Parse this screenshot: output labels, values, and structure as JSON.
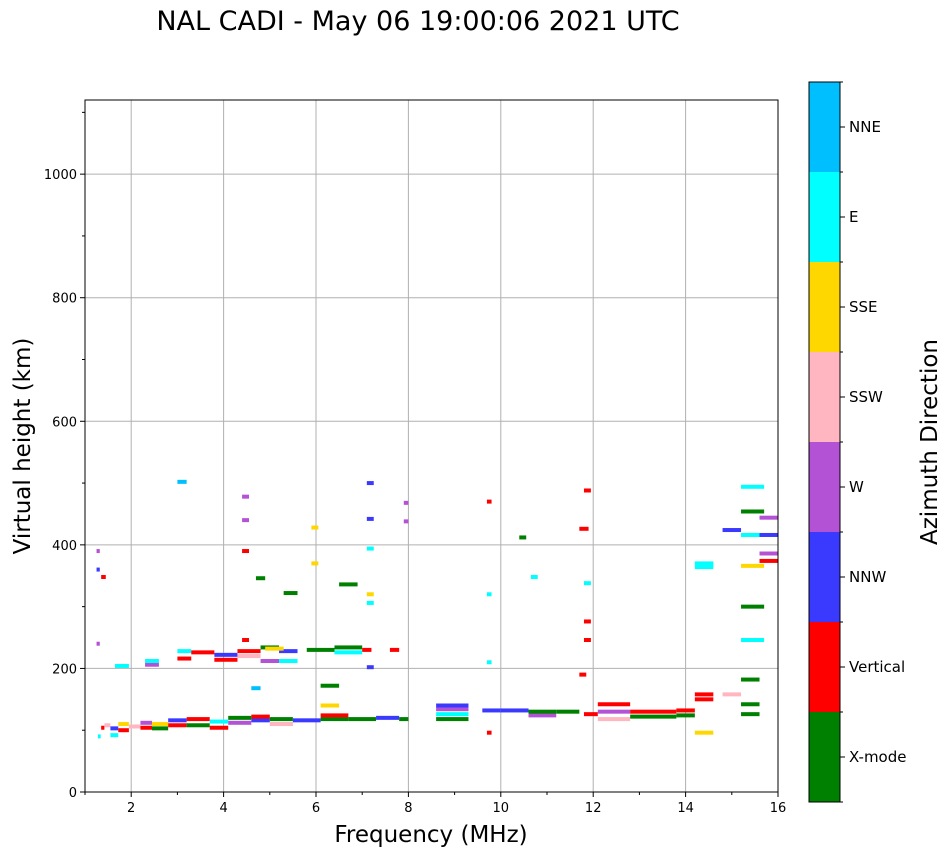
{
  "chart_data": {
    "type": "scatter",
    "title": "NAL CADI - May 06 19:00:06 2021 UTC",
    "xlabel": "Frequency (MHz)",
    "ylabel": "Virtual height (km)",
    "xlim": [
      1.0,
      16.0
    ],
    "ylim": [
      0,
      1120
    ],
    "xticks": [
      2,
      4,
      6,
      8,
      10,
      12,
      14,
      16
    ],
    "yticks": [
      0,
      200,
      400,
      600,
      800,
      1000
    ],
    "grid": true,
    "colorbar": {
      "label": "Azimuth Direction",
      "categories": [
        "X-mode",
        "Vertical",
        "NNW",
        "W",
        "SSW",
        "SSE",
        "E",
        "NNE"
      ],
      "colors": [
        "#008000",
        "#ff0000",
        "#3a3aff",
        "#b452d6",
        "#ffb6c1",
        "#ffd700",
        "#00ffff",
        "#00bfff"
      ]
    },
    "series_note": "Each trace: [freq_start_MHz, freq_end_MHz, height_km, azimuth_category_index]",
    "traces": [
      [
        1.28,
        1.34,
        90,
        6
      ],
      [
        1.35,
        1.42,
        104,
        1
      ],
      [
        1.42,
        1.55,
        108,
        4
      ],
      [
        1.55,
        1.72,
        103,
        2
      ],
      [
        1.55,
        1.72,
        92,
        6
      ],
      [
        1.72,
        1.95,
        110,
        5
      ],
      [
        1.72,
        1.95,
        100,
        1
      ],
      [
        1.95,
        2.2,
        106,
        4
      ],
      [
        2.2,
        2.45,
        104,
        1
      ],
      [
        2.2,
        2.45,
        112,
        3
      ],
      [
        2.45,
        2.8,
        110,
        5
      ],
      [
        2.45,
        2.8,
        103,
        0
      ],
      [
        2.8,
        3.2,
        108,
        1
      ],
      [
        2.8,
        3.2,
        116,
        2
      ],
      [
        3.2,
        3.7,
        108,
        0
      ],
      [
        3.2,
        3.7,
        118,
        1
      ],
      [
        3.7,
        4.1,
        104,
        1
      ],
      [
        3.7,
        4.1,
        114,
        6
      ],
      [
        4.1,
        4.6,
        120,
        0
      ],
      [
        4.1,
        4.6,
        112,
        3
      ],
      [
        4.6,
        5.0,
        116,
        2
      ],
      [
        4.6,
        5.0,
        122,
        1
      ],
      [
        5.0,
        5.5,
        118,
        0
      ],
      [
        5.0,
        5.5,
        110,
        4
      ],
      [
        5.5,
        6.1,
        116,
        2
      ],
      [
        6.1,
        6.7,
        118,
        0
      ],
      [
        6.1,
        6.7,
        124,
        1
      ],
      [
        6.7,
        7.3,
        118,
        0
      ],
      [
        7.3,
        7.8,
        120,
        2
      ],
      [
        7.8,
        8.0,
        118,
        0
      ],
      [
        8.6,
        9.3,
        118,
        0
      ],
      [
        8.6,
        9.3,
        126,
        6
      ],
      [
        8.6,
        9.3,
        134,
        3
      ],
      [
        8.6,
        9.3,
        140,
        2
      ],
      [
        9.6,
        10.0,
        132,
        2
      ],
      [
        10.0,
        10.6,
        132,
        2
      ],
      [
        10.6,
        11.2,
        124,
        3
      ],
      [
        10.6,
        11.2,
        130,
        0
      ],
      [
        11.2,
        11.7,
        130,
        0
      ],
      [
        11.8,
        12.1,
        126,
        1
      ],
      [
        12.1,
        12.8,
        118,
        4
      ],
      [
        12.1,
        12.8,
        130,
        3
      ],
      [
        12.1,
        12.8,
        142,
        1
      ],
      [
        12.8,
        13.8,
        122,
        0
      ],
      [
        12.8,
        13.8,
        130,
        1
      ],
      [
        13.8,
        14.2,
        124,
        0
      ],
      [
        13.8,
        14.2,
        132,
        1
      ],
      [
        14.2,
        14.6,
        96,
        5
      ],
      [
        14.2,
        14.6,
        158,
        1
      ],
      [
        14.2,
        14.6,
        150,
        1
      ],
      [
        14.8,
        15.2,
        158,
        4
      ],
      [
        15.2,
        15.6,
        126,
        0
      ],
      [
        15.2,
        15.6,
        142,
        0
      ],
      [
        15.2,
        15.6,
        182,
        0
      ],
      [
        2.3,
        2.6,
        206,
        3
      ],
      [
        2.3,
        2.6,
        212,
        6
      ],
      [
        3.0,
        3.3,
        216,
        1
      ],
      [
        3.0,
        3.3,
        228,
        6
      ],
      [
        3.3,
        3.8,
        226,
        1
      ],
      [
        3.8,
        4.3,
        214,
        1
      ],
      [
        3.8,
        4.3,
        222,
        2
      ],
      [
        4.3,
        4.8,
        228,
        1
      ],
      [
        4.3,
        4.8,
        220,
        4
      ],
      [
        4.8,
        5.2,
        234,
        0
      ],
      [
        4.8,
        5.2,
        212,
        3
      ],
      [
        5.2,
        5.6,
        228,
        2
      ],
      [
        5.2,
        5.6,
        212,
        6
      ],
      [
        5.8,
        6.4,
        230,
        0
      ],
      [
        6.4,
        7.0,
        234,
        0
      ],
      [
        6.4,
        7.0,
        226,
        6
      ],
      [
        7.0,
        7.2,
        230,
        1
      ],
      [
        7.6,
        7.8,
        230,
        1
      ],
      [
        5.3,
        5.6,
        322,
        0
      ],
      [
        6.5,
        6.9,
        336,
        0
      ],
      [
        3.0,
        3.2,
        502,
        7
      ],
      [
        14.2,
        14.6,
        364,
        6
      ],
      [
        14.2,
        14.6,
        370,
        6
      ],
      [
        14.8,
        15.2,
        424,
        2
      ],
      [
        15.2,
        15.7,
        416,
        6
      ],
      [
        15.2,
        15.7,
        366,
        5
      ],
      [
        15.2,
        15.7,
        494,
        6
      ],
      [
        15.2,
        15.7,
        454,
        0
      ],
      [
        15.6,
        16.0,
        416,
        2
      ],
      [
        15.6,
        16.0,
        374,
        1
      ],
      [
        15.6,
        16.0,
        386,
        3
      ],
      [
        15.6,
        16.0,
        444,
        3
      ],
      [
        15.2,
        15.7,
        300,
        0
      ],
      [
        15.2,
        15.7,
        246,
        6
      ],
      [
        11.7,
        11.9,
        426,
        1
      ],
      [
        11.8,
        11.95,
        488,
        1
      ],
      [
        11.8,
        11.95,
        338,
        6
      ],
      [
        11.8,
        11.95,
        276,
        1
      ],
      [
        11.8,
        11.95,
        246,
        1
      ],
      [
        11.7,
        11.85,
        190,
        1
      ],
      [
        10.65,
        10.8,
        348,
        6
      ],
      [
        9.7,
        9.8,
        470,
        1
      ],
      [
        9.7,
        9.8,
        320,
        6
      ],
      [
        9.7,
        9.8,
        210,
        6
      ],
      [
        9.7,
        9.8,
        96,
        1
      ],
      [
        7.1,
        7.25,
        500,
        2
      ],
      [
        7.1,
        7.25,
        442,
        2
      ],
      [
        7.1,
        7.25,
        394,
        6
      ],
      [
        7.1,
        7.25,
        320,
        5
      ],
      [
        7.1,
        7.25,
        306,
        6
      ],
      [
        7.1,
        7.25,
        202,
        2
      ],
      [
        6.1,
        6.5,
        172,
        0
      ],
      [
        6.1,
        6.5,
        140,
        5
      ],
      [
        4.6,
        4.8,
        168,
        7
      ],
      [
        4.9,
        5.3,
        232,
        5
      ],
      [
        4.4,
        4.55,
        478,
        3
      ],
      [
        4.4,
        4.55,
        440,
        3
      ],
      [
        4.4,
        4.55,
        390,
        1
      ],
      [
        4.4,
        4.55,
        246,
        1
      ],
      [
        4.7,
        4.9,
        346,
        0
      ],
      [
        1.25,
        1.32,
        390,
        3
      ],
      [
        1.25,
        1.32,
        360,
        2
      ],
      [
        1.35,
        1.45,
        348,
        1
      ],
      [
        1.25,
        1.32,
        240,
        3
      ],
      [
        1.65,
        1.95,
        204,
        6
      ],
      [
        7.9,
        8.0,
        468,
        3
      ],
      [
        7.9,
        8.0,
        438,
        3
      ],
      [
        10.4,
        10.55,
        412,
        0
      ],
      [
        5.9,
        6.05,
        428,
        5
      ],
      [
        5.9,
        6.05,
        370,
        5
      ]
    ]
  }
}
